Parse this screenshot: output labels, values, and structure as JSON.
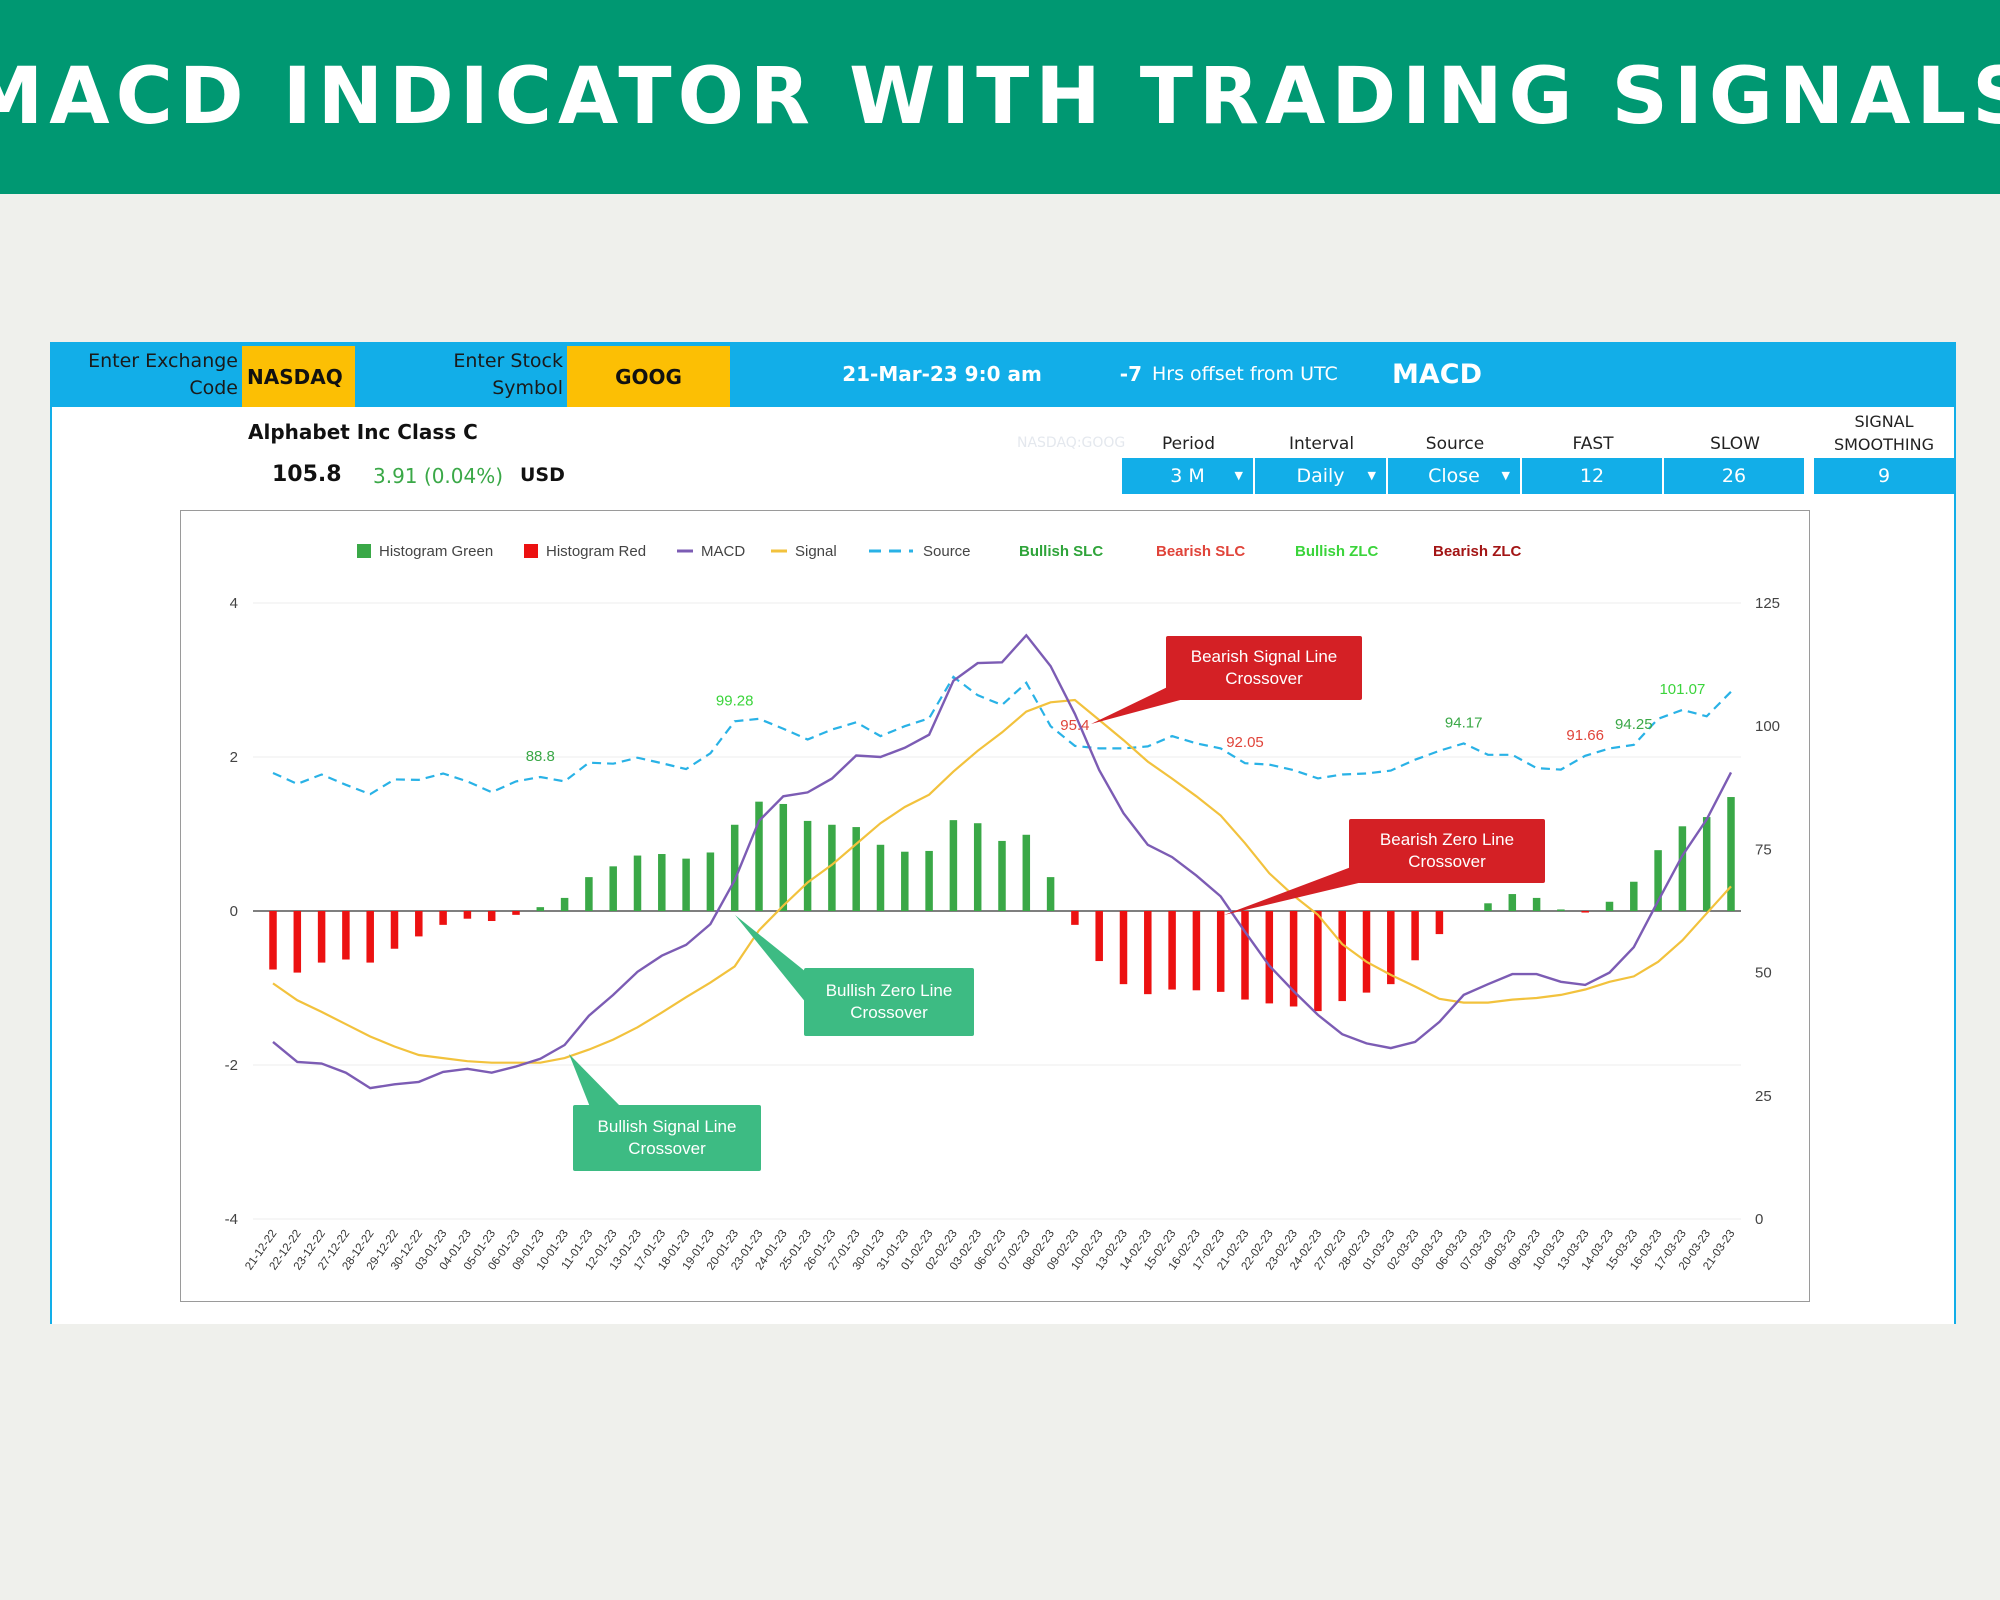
{
  "page": {
    "title": "MACD INDICATOR WITH TRADING SIGNALS"
  },
  "inputs": {
    "exchange_label": "Enter Exchange Code",
    "exchange_value": "NASDAQ",
    "symbol_label": "Enter Stock Symbol",
    "symbol_value": "GOOG",
    "datetime": "21-Mar-23 9:0 am",
    "utc_offset": "-7",
    "utc_offset_label": "Hrs offset from UTC",
    "indicator": "MACD"
  },
  "quote": {
    "company": "Alphabet Inc Class C",
    "price": "105.8",
    "change": "3.91 (0.04%)",
    "currency": "USD",
    "ticker_ghost": "NASDAQ:GOOG"
  },
  "settings": {
    "headers": [
      "Period",
      "Interval",
      "Source",
      "FAST",
      "SLOW",
      "SIGNAL SMOOTHING"
    ],
    "values": [
      "3 M",
      "Daily",
      "Close",
      "12",
      "26",
      "9"
    ]
  },
  "colors": {
    "banner": "#009872",
    "topbar": "#12aee8",
    "input_yellow": "#fcbf04",
    "hist_green": "#3aa847",
    "hist_red": "#ec1111",
    "macd": "#7c5cb4",
    "signal": "#f2c23d",
    "source": "#29b2e6",
    "bullish_label": "#3aa847",
    "bearish_label": "#e0443a",
    "callout_green": "#3dbb83",
    "callout_red": "#d42025"
  },
  "chart_data": {
    "type": "bar",
    "legend": [
      {
        "label": "Histogram Green",
        "kind": "square",
        "color": "#3aa847"
      },
      {
        "label": "Histogram Red",
        "kind": "square",
        "color": "#ec1111"
      },
      {
        "label": "MACD",
        "kind": "line",
        "color": "#7c5cb4"
      },
      {
        "label": "Signal",
        "kind": "line",
        "color": "#f2c23d"
      },
      {
        "label": "Source",
        "kind": "dash",
        "color": "#29b2e6"
      },
      {
        "label": "Bullish SLC",
        "kind": "text",
        "color": "#2fa43a"
      },
      {
        "label": "Bearish SLC",
        "kind": "text",
        "color": "#e0443a"
      },
      {
        "label": "Bullish ZLC",
        "kind": "text",
        "color": "#3bd43b"
      },
      {
        "label": "Bearish ZLC",
        "kind": "text",
        "color": "#a31515"
      }
    ],
    "legend_position": "top",
    "grid": true,
    "y_left": {
      "range": [
        -4,
        4
      ],
      "ticks": [
        "4",
        "2",
        "0",
        "-2",
        "-4"
      ]
    },
    "y_right": {
      "range": [
        0,
        125
      ],
      "ticks": [
        "125",
        "100",
        "75",
        "50",
        "25",
        "0"
      ]
    },
    "dates": [
      "21-12-22",
      "22-12-22",
      "23-12-22",
      "27-12-22",
      "28-12-22",
      "29-12-22",
      "30-12-22",
      "03-01-23",
      "04-01-23",
      "05-01-23",
      "06-01-23",
      "09-01-23",
      "10-01-23",
      "11-01-23",
      "12-01-23",
      "13-01-23",
      "17-01-23",
      "18-01-23",
      "19-01-23",
      "20-01-23",
      "23-01-23",
      "24-01-23",
      "25-01-23",
      "26-01-23",
      "27-01-23",
      "30-01-23",
      "31-01-23",
      "01-02-23",
      "02-02-23",
      "03-02-23",
      "06-02-23",
      "07-02-23",
      "08-02-23",
      "09-02-23",
      "10-02-23",
      "13-02-23",
      "14-02-23",
      "15-02-23",
      "16-02-23",
      "17-02-23",
      "21-02-23",
      "22-02-23",
      "23-02-23",
      "24-02-23",
      "27-02-23",
      "28-02-23",
      "01-03-23",
      "02-03-23",
      "03-03-23",
      "06-03-23",
      "07-03-23",
      "08-03-23",
      "09-03-23",
      "10-03-23",
      "13-03-23",
      "14-03-23",
      "15-03-23",
      "16-03-23",
      "17-03-23",
      "20-03-23",
      "21-03-23"
    ],
    "series": [
      {
        "name": "Histogram Green",
        "axis": "left",
        "values": [
          null,
          null,
          null,
          null,
          null,
          null,
          null,
          null,
          null,
          null,
          null,
          0.05,
          0.17,
          0.44,
          0.58,
          0.72,
          0.74,
          0.68,
          0.76,
          1.12,
          1.42,
          1.39,
          1.17,
          1.12,
          1.09,
          0.86,
          0.77,
          0.78,
          1.18,
          1.14,
          0.91,
          0.99,
          0.44,
          null,
          null,
          null,
          null,
          null,
          null,
          null,
          null,
          null,
          null,
          null,
          null,
          null,
          null,
          null,
          null,
          null,
          0.1,
          0.22,
          0.17,
          0.02,
          null,
          0.12,
          0.38,
          0.79,
          1.1,
          1.22,
          1.48
        ]
      },
      {
        "name": "Histogram Red",
        "axis": "left",
        "values": [
          -0.76,
          -0.8,
          -0.67,
          -0.63,
          -0.67,
          -0.49,
          -0.33,
          -0.18,
          -0.1,
          -0.13,
          -0.05,
          null,
          null,
          null,
          null,
          null,
          null,
          null,
          null,
          null,
          null,
          null,
          null,
          null,
          null,
          null,
          null,
          null,
          null,
          null,
          null,
          null,
          null,
          -0.18,
          -0.65,
          -0.95,
          -1.08,
          -1.02,
          -1.03,
          -1.05,
          -1.15,
          -1.2,
          -1.24,
          -1.3,
          -1.17,
          -1.06,
          -0.95,
          -0.64,
          -0.3,
          null,
          null,
          null,
          null,
          null,
          -0.02,
          null,
          null,
          null,
          null,
          null,
          null
        ]
      },
      {
        "name": "MACD",
        "axis": "left",
        "values": [
          -1.7,
          -1.96,
          -1.98,
          -2.1,
          -2.3,
          -2.25,
          -2.22,
          -2.09,
          -2.05,
          -2.1,
          -2.02,
          -1.92,
          -1.74,
          -1.36,
          -1.09,
          -0.79,
          -0.58,
          -0.44,
          -0.17,
          0.4,
          1.17,
          1.49,
          1.54,
          1.72,
          2.02,
          2.0,
          2.12,
          2.29,
          2.99,
          3.22,
          3.23,
          3.58,
          3.18,
          2.56,
          1.83,
          1.27,
          0.86,
          0.7,
          0.46,
          0.19,
          -0.27,
          -0.71,
          -1.04,
          -1.35,
          -1.6,
          -1.72,
          -1.78,
          -1.7,
          -1.44,
          -1.09,
          -0.95,
          -0.82,
          -0.82,
          -0.92,
          -0.96,
          -0.8,
          -0.47,
          0.13,
          0.72,
          1.19,
          1.8
        ]
      },
      {
        "name": "Signal",
        "axis": "left",
        "values": [
          -0.94,
          -1.16,
          -1.31,
          -1.47,
          -1.63,
          -1.76,
          -1.87,
          -1.91,
          -1.95,
          -1.97,
          -1.97,
          -1.97,
          -1.91,
          -1.8,
          -1.67,
          -1.51,
          -1.32,
          -1.12,
          -0.93,
          -0.72,
          -0.25,
          0.07,
          0.37,
          0.6,
          0.87,
          1.14,
          1.35,
          1.51,
          1.81,
          2.08,
          2.32,
          2.59,
          2.71,
          2.74,
          2.48,
          2.22,
          1.94,
          1.72,
          1.49,
          1.24,
          0.88,
          0.49,
          0.2,
          -0.05,
          -0.43,
          -0.66,
          -0.83,
          -0.98,
          -1.14,
          -1.19,
          -1.19,
          -1.15,
          -1.13,
          -1.09,
          -1.02,
          -0.92,
          -0.85,
          -0.66,
          -0.38,
          -0.03,
          0.32
        ]
      },
      {
        "name": "Source",
        "axis": "right",
        "values": [
          90.5,
          88.3,
          90.2,
          88.1,
          86.2,
          89.2,
          89.1,
          90.4,
          88.8,
          86.6,
          88.8,
          89.7,
          88.8,
          92.6,
          92.4,
          93.6,
          92.5,
          91.3,
          94.5,
          101.0,
          101.5,
          99.5,
          97.3,
          99.3,
          100.8,
          98.0,
          100.0,
          101.6,
          110.0,
          106.3,
          104.3,
          108.8,
          100.0,
          96.0,
          95.5,
          95.5,
          95.9,
          98.0,
          96.5,
          95.5,
          92.5,
          92.2,
          91.1,
          89.4,
          90.2,
          90.4,
          91.0,
          93.2,
          95.0,
          96.5,
          94.2,
          94.2,
          91.5,
          91.2,
          94.0,
          95.5,
          96.2,
          101.5,
          103.3,
          102.0,
          107.0
        ]
      }
    ],
    "point_labels": [
      {
        "i": 11,
        "text": "88.8",
        "color": "#3aa847"
      },
      {
        "i": 19,
        "text": "99.28",
        "color": "#3bd43b"
      },
      {
        "i": 33,
        "text": "95.4",
        "color": "#e0443a"
      },
      {
        "i": 40,
        "text": "92.05",
        "color": "#e0443a"
      },
      {
        "i": 49,
        "text": "94.17",
        "color": "#3aa847"
      },
      {
        "i": 54,
        "text": "91.66",
        "color": "#e0443a"
      },
      {
        "i": 56,
        "text": "94.25",
        "color": "#3aa847"
      },
      {
        "i": 58,
        "text": "101.07",
        "color": "#3bd43b"
      }
    ],
    "callouts": [
      {
        "text": [
          "Bearish Signal Line",
          "Crossover"
        ],
        "color": "#d42025"
      },
      {
        "text": [
          "Bearish Zero Line",
          "Crossover"
        ],
        "color": "#d42025"
      },
      {
        "text": [
          "Bullish Zero Line",
          "Crossover"
        ],
        "color": "#3dbb83"
      },
      {
        "text": [
          "Bullish Signal Line",
          "Crossover"
        ],
        "color": "#3dbb83"
      }
    ]
  }
}
